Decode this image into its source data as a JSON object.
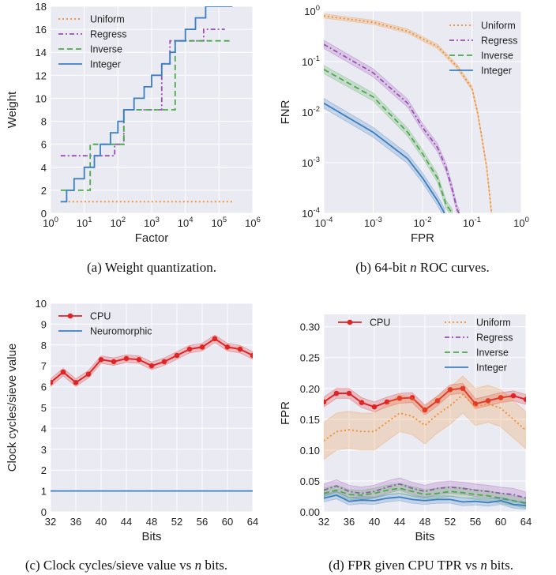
{
  "colors": {
    "uniform": "#f28e2b",
    "regress": "#9a4fb5",
    "inverse": "#4aaa4a",
    "integer": "#3a7fc1",
    "cpu": "#e02424",
    "neuromorphic": "#3a7fc1",
    "panel_bg": "#eaeaf2",
    "grid": "#ffffff"
  },
  "chart_data": [
    {
      "id": "a",
      "type": "line",
      "caption": "(a) Weight quantization.",
      "xlabel": "Factor",
      "ylabel": "Weight",
      "xscale": "log",
      "xlim": [
        1,
        1000000
      ],
      "ylim": [
        0,
        18
      ],
      "xticks": [
        {
          "v": 1,
          "b": "10",
          "e": "0"
        },
        {
          "v": 10,
          "b": "10",
          "e": "1"
        },
        {
          "v": 100,
          "b": "10",
          "e": "2"
        },
        {
          "v": 1000,
          "b": "10",
          "e": "3"
        },
        {
          "v": 10000,
          "b": "10",
          "e": "4"
        },
        {
          "v": 100000,
          "b": "10",
          "e": "5"
        },
        {
          "v": 1000000,
          "b": "10",
          "e": "6"
        }
      ],
      "yticks": [
        {
          "v": 0,
          "t": "0"
        },
        {
          "v": 2,
          "t": "2"
        },
        {
          "v": 4,
          "t": "4"
        },
        {
          "v": 6,
          "t": "6"
        },
        {
          "v": 8,
          "t": "8"
        },
        {
          "v": 10,
          "t": "10"
        },
        {
          "v": 12,
          "t": "12"
        },
        {
          "v": 14,
          "t": "14"
        },
        {
          "v": 16,
          "t": "16"
        },
        {
          "v": 18,
          "t": "18"
        }
      ],
      "legend_position": "top-left",
      "series": [
        {
          "name": "Uniform",
          "key": "uniform",
          "style": "dotted",
          "step": true,
          "x": [
            2,
            250000
          ],
          "y": [
            1,
            1
          ]
        },
        {
          "name": "Regress",
          "key": "regress",
          "style": "dashdot",
          "step": true,
          "x": [
            2,
            40,
            80,
            150,
            500,
            2000,
            3500,
            12000,
            35000,
            150000
          ],
          "y": [
            5,
            5,
            6,
            9,
            9,
            13,
            15,
            15,
            16,
            16
          ]
        },
        {
          "name": "Inverse",
          "key": "inverse",
          "style": "dashed",
          "step": true,
          "x": [
            2,
            7,
            15,
            30,
            150,
            5000,
            100000,
            250000
          ],
          "y": [
            2,
            2,
            6,
            6,
            9,
            15,
            15,
            15
          ]
        },
        {
          "name": "Integer",
          "key": "integer",
          "style": "solid",
          "step": true,
          "x": [
            2,
            3,
            5,
            10,
            20,
            30,
            60,
            100,
            150,
            300,
            600,
            1000,
            2000,
            3500,
            5000,
            10000,
            20000,
            40000,
            80000,
            150000,
            250000
          ],
          "y": [
            1,
            2,
            3,
            4,
            5,
            6,
            7,
            8,
            9,
            10,
            11,
            12,
            13,
            14,
            15,
            16,
            17,
            18,
            18,
            18,
            18
          ]
        }
      ]
    },
    {
      "id": "b",
      "type": "line",
      "caption": "(b) 64-bit n ROC curves.",
      "xlabel": "FPR",
      "ylabel": "FNR",
      "xscale": "log",
      "yscale": "log",
      "xlim": [
        0.0001,
        1
      ],
      "ylim": [
        0.0001,
        1
      ],
      "xticks": [
        {
          "v": 0.0001,
          "b": "10",
          "e": "-4"
        },
        {
          "v": 0.001,
          "b": "10",
          "e": "-3"
        },
        {
          "v": 0.01,
          "b": "10",
          "e": "-2"
        },
        {
          "v": 0.1,
          "b": "10",
          "e": "-1"
        },
        {
          "v": 1,
          "b": "10",
          "e": "0"
        }
      ],
      "yticks": [
        {
          "v": 0.0001,
          "b": "10",
          "e": "-4"
        },
        {
          "v": 0.001,
          "b": "10",
          "e": "-3"
        },
        {
          "v": 0.01,
          "b": "10",
          "e": "-2"
        },
        {
          "v": 0.1,
          "b": "10",
          "e": "-1"
        },
        {
          "v": 1,
          "b": "10",
          "e": "0"
        }
      ],
      "legend_position": "top-right",
      "series": [
        {
          "name": "Uniform",
          "key": "uniform",
          "style": "dotted",
          "x": [
            0.0001,
            0.001,
            0.005,
            0.02,
            0.05,
            0.1,
            0.13,
            0.16,
            0.2,
            0.25
          ],
          "y": [
            0.8,
            0.6,
            0.4,
            0.2,
            0.08,
            0.03,
            0.01,
            0.003,
            0.0008,
            0.0001
          ],
          "band": 0.1
        },
        {
          "name": "Regress",
          "key": "regress",
          "style": "dashdot",
          "x": [
            0.0001,
            0.001,
            0.005,
            0.01,
            0.02,
            0.03,
            0.04,
            0.05,
            0.055
          ],
          "y": [
            0.22,
            0.06,
            0.015,
            0.005,
            0.002,
            0.0008,
            0.0003,
            0.00012,
            0.0001
          ],
          "band": 0.2
        },
        {
          "name": "Inverse",
          "key": "inverse",
          "style": "dashed",
          "x": [
            0.0001,
            0.001,
            0.005,
            0.01,
            0.02,
            0.03,
            0.04
          ],
          "y": [
            0.07,
            0.02,
            0.004,
            0.0015,
            0.0005,
            0.00015,
            0.0001
          ],
          "band": 0.2
        },
        {
          "name": "Integer",
          "key": "integer",
          "style": "solid",
          "x": [
            0.0001,
            0.001,
            0.005,
            0.01,
            0.02,
            0.028
          ],
          "y": [
            0.015,
            0.004,
            0.0012,
            0.0005,
            0.00018,
            0.0001
          ],
          "band": 0.25
        }
      ]
    },
    {
      "id": "c",
      "type": "line",
      "caption": "(c) Clock cycles/sieve value vs n bits.",
      "xlabel": "Bits",
      "ylabel": "Clock cycles/sieve value",
      "xlim": [
        32,
        64
      ],
      "ylim": [
        0,
        10
      ],
      "xticks": [
        {
          "v": 32,
          "t": "32"
        },
        {
          "v": 36,
          "t": "36"
        },
        {
          "v": 40,
          "t": "40"
        },
        {
          "v": 44,
          "t": "44"
        },
        {
          "v": 48,
          "t": "48"
        },
        {
          "v": 52,
          "t": "52"
        },
        {
          "v": 56,
          "t": "56"
        },
        {
          "v": 60,
          "t": "60"
        },
        {
          "v": 64,
          "t": "64"
        }
      ],
      "yticks": [
        {
          "v": 0,
          "t": "0"
        },
        {
          "v": 1,
          "t": "1"
        },
        {
          "v": 2,
          "t": "2"
        },
        {
          "v": 3,
          "t": "3"
        },
        {
          "v": 4,
          "t": "4"
        },
        {
          "v": 5,
          "t": "5"
        },
        {
          "v": 6,
          "t": "6"
        },
        {
          "v": 7,
          "t": "7"
        },
        {
          "v": 8,
          "t": "8"
        },
        {
          "v": 9,
          "t": "9"
        },
        {
          "v": 10,
          "t": "10"
        }
      ],
      "legend_position": "top-left",
      "series": [
        {
          "name": "CPU",
          "key": "cpu",
          "style": "solid",
          "markers": true,
          "x": [
            32,
            34,
            36,
            38,
            40,
            42,
            44,
            46,
            48,
            50,
            52,
            54,
            56,
            58,
            60,
            62,
            64
          ],
          "y": [
            6.2,
            6.7,
            6.2,
            6.6,
            7.3,
            7.2,
            7.35,
            7.3,
            7.0,
            7.2,
            7.5,
            7.8,
            7.9,
            8.3,
            7.9,
            7.8,
            7.5
          ],
          "band": 0.18
        },
        {
          "name": "Neuromorphic",
          "key": "neuromorphic",
          "style": "solid",
          "x": [
            32,
            64
          ],
          "y": [
            1,
            1
          ]
        }
      ]
    },
    {
      "id": "d",
      "type": "line",
      "caption": "(d) FPR given CPU TPR vs n bits.",
      "xlabel": "Bits",
      "ylabel": "FPR",
      "xlim": [
        32,
        64
      ],
      "ylim": [
        0,
        0.32
      ],
      "xticks": [
        {
          "v": 32,
          "t": "32"
        },
        {
          "v": 36,
          "t": "36"
        },
        {
          "v": 40,
          "t": "40"
        },
        {
          "v": 44,
          "t": "44"
        },
        {
          "v": 48,
          "t": "48"
        },
        {
          "v": 52,
          "t": "52"
        },
        {
          "v": 56,
          "t": "56"
        },
        {
          "v": 60,
          "t": "60"
        },
        {
          "v": 64,
          "t": "64"
        }
      ],
      "yticks": [
        {
          "v": 0,
          "t": "0.00"
        },
        {
          "v": 0.05,
          "t": "0.05"
        },
        {
          "v": 0.1,
          "t": "0.10"
        },
        {
          "v": 0.15,
          "t": "0.15"
        },
        {
          "v": 0.2,
          "t": "0.20"
        },
        {
          "v": 0.25,
          "t": "0.25"
        },
        {
          "v": 0.3,
          "t": "0.30"
        }
      ],
      "legend_position": "top",
      "series": [
        {
          "name": "CPU",
          "key": "cpu",
          "style": "solid",
          "markers": true,
          "x": [
            32,
            34,
            36,
            38,
            40,
            42,
            44,
            46,
            48,
            50,
            52,
            54,
            56,
            58,
            60,
            62,
            64
          ],
          "y": [
            0.178,
            0.192,
            0.192,
            0.177,
            0.17,
            0.178,
            0.184,
            0.185,
            0.165,
            0.18,
            0.198,
            0.2,
            0.175,
            0.18,
            0.185,
            0.188,
            0.182
          ],
          "band": 0.008
        },
        {
          "name": "Uniform",
          "key": "uniform",
          "style": "dotted",
          "x": [
            32,
            34,
            36,
            38,
            40,
            42,
            44,
            46,
            48,
            50,
            52,
            54,
            56,
            58,
            60,
            62,
            64
          ],
          "y": [
            0.115,
            0.13,
            0.133,
            0.13,
            0.13,
            0.145,
            0.16,
            0.155,
            0.14,
            0.158,
            0.172,
            0.19,
            0.17,
            0.175,
            0.168,
            0.15,
            0.132
          ],
          "band": 0.03
        },
        {
          "name": "Regress",
          "key": "regress",
          "style": "dashdot",
          "x": [
            32,
            34,
            36,
            38,
            40,
            42,
            44,
            46,
            48,
            50,
            52,
            54,
            56,
            58,
            60,
            62,
            64
          ],
          "y": [
            0.035,
            0.042,
            0.033,
            0.03,
            0.033,
            0.04,
            0.045,
            0.038,
            0.033,
            0.038,
            0.04,
            0.038,
            0.035,
            0.033,
            0.03,
            0.028,
            0.022
          ],
          "band": 0.01
        },
        {
          "name": "Inverse",
          "key": "inverse",
          "style": "dashed",
          "x": [
            32,
            34,
            36,
            38,
            40,
            42,
            44,
            46,
            48,
            50,
            52,
            54,
            56,
            58,
            60,
            62,
            64
          ],
          "y": [
            0.03,
            0.035,
            0.028,
            0.027,
            0.03,
            0.035,
            0.038,
            0.033,
            0.028,
            0.03,
            0.033,
            0.031,
            0.028,
            0.026,
            0.022,
            0.018,
            0.014
          ],
          "band": 0.008
        },
        {
          "name": "Integer",
          "key": "integer",
          "style": "solid",
          "x": [
            32,
            34,
            36,
            38,
            40,
            42,
            44,
            46,
            48,
            50,
            52,
            54,
            56,
            58,
            60,
            62,
            64
          ],
          "y": [
            0.022,
            0.027,
            0.017,
            0.019,
            0.018,
            0.022,
            0.024,
            0.02,
            0.018,
            0.02,
            0.02,
            0.016,
            0.017,
            0.015,
            0.018,
            0.012,
            0.01
          ],
          "band": 0.006
        }
      ]
    }
  ]
}
